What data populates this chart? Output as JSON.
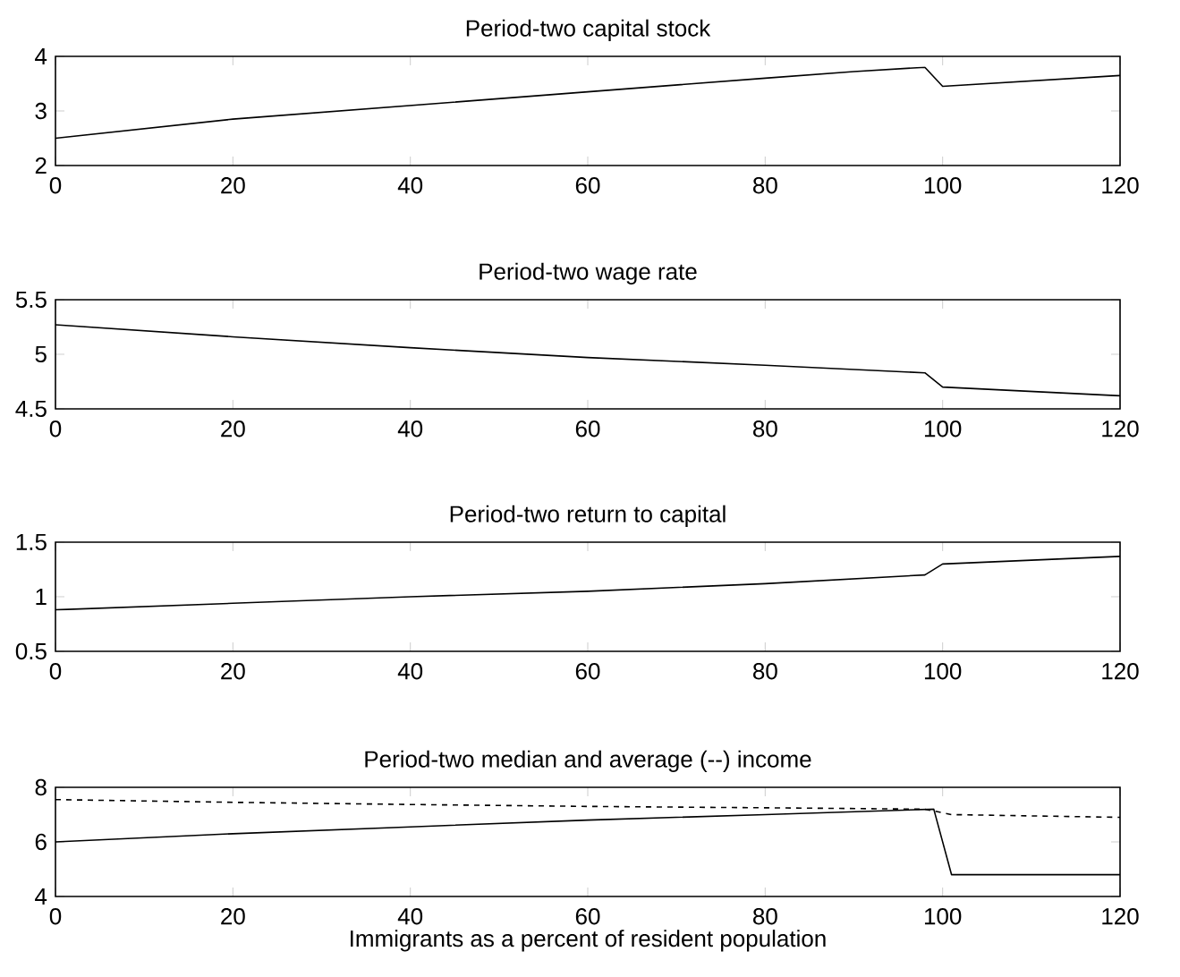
{
  "chart_data": [
    {
      "type": "line",
      "title": "Period-two capital stock",
      "xlim": [
        0,
        120
      ],
      "ylim": [
        2,
        4
      ],
      "xticks": [
        0,
        20,
        40,
        60,
        80,
        100,
        120
      ],
      "yticks": [
        2,
        3,
        4
      ],
      "series": [
        {
          "color": "#000000",
          "line_style": "solid",
          "x": [
            0,
            20,
            40,
            60,
            80,
            90,
            98,
            100,
            120
          ],
          "values": [
            2.5,
            2.85,
            3.1,
            3.35,
            3.6,
            3.72,
            3.8,
            3.45,
            3.65
          ]
        }
      ]
    },
    {
      "type": "line",
      "title": "Period-two wage rate",
      "xlim": [
        0,
        120
      ],
      "ylim": [
        4.5,
        5.5
      ],
      "xticks": [
        0,
        20,
        40,
        60,
        80,
        100,
        120
      ],
      "yticks": [
        4.5,
        5,
        5.5
      ],
      "series": [
        {
          "color": "#000000",
          "line_style": "solid",
          "x": [
            0,
            20,
            40,
            60,
            80,
            98,
            100,
            120
          ],
          "values": [
            5.27,
            5.16,
            5.06,
            4.97,
            4.9,
            4.83,
            4.7,
            4.62
          ]
        }
      ]
    },
    {
      "type": "line",
      "title": "Period-two return to capital",
      "xlim": [
        0,
        120
      ],
      "ylim": [
        0.5,
        1.5
      ],
      "xticks": [
        0,
        20,
        40,
        60,
        80,
        100,
        120
      ],
      "yticks": [
        0.5,
        1,
        1.5
      ],
      "series": [
        {
          "color": "#000000",
          "line_style": "solid",
          "x": [
            0,
            20,
            40,
            60,
            80,
            98,
            100,
            120
          ],
          "values": [
            0.88,
            0.94,
            1.0,
            1.05,
            1.12,
            1.2,
            1.3,
            1.37
          ]
        }
      ]
    },
    {
      "type": "line",
      "title": "Period-two median and average (--) income",
      "xlabel": "Immigrants as a percent of resident population",
      "xlim": [
        0,
        120
      ],
      "ylim": [
        4,
        8
      ],
      "xticks": [
        0,
        20,
        40,
        60,
        80,
        100,
        120
      ],
      "yticks": [
        4,
        6,
        8
      ],
      "series": [
        {
          "color": "#000000",
          "line_style": "solid",
          "x": [
            0,
            20,
            40,
            60,
            80,
            99,
            101,
            120
          ],
          "values": [
            6.0,
            6.3,
            6.55,
            6.8,
            7.0,
            7.2,
            4.8,
            4.8
          ]
        },
        {
          "color": "#000000",
          "line_style": "dashed",
          "x": [
            0,
            20,
            40,
            60,
            80,
            98,
            101,
            120
          ],
          "values": [
            7.55,
            7.45,
            7.37,
            7.3,
            7.25,
            7.2,
            7.0,
            6.9
          ]
        }
      ]
    }
  ]
}
